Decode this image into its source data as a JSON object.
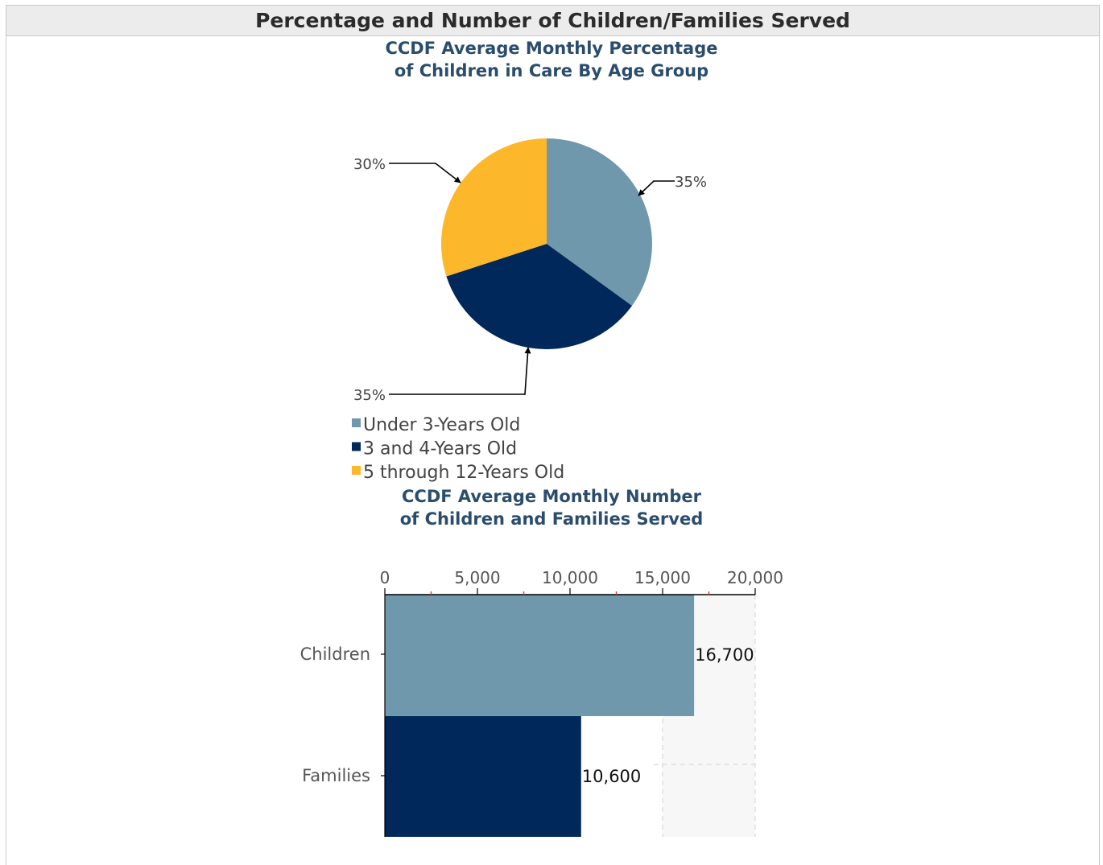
{
  "page": {
    "title": "Percentage and Number of Children/Families Served"
  },
  "chart_data": [
    {
      "type": "pie",
      "title_line1": "CCDF Average Monthly Percentage",
      "title_line2": "of Children in Care By Age Group",
      "slices": [
        {
          "name": "Under 3-Years Old",
          "value": 35,
          "label": "35%",
          "color": "#6f98ad"
        },
        {
          "name": "3 and 4-Years Old",
          "value": 35,
          "label": "35%",
          "color": "#00285a"
        },
        {
          "name": "5 through 12-Years Old",
          "value": 30,
          "label": "30%",
          "color": "#fdb72b"
        }
      ],
      "legend_position": "bottom-left"
    },
    {
      "type": "bar",
      "orientation": "horizontal",
      "title_line1": "CCDF Average Monthly Number",
      "title_line2": "of Children and Families Served",
      "categories": [
        "Children",
        "Families"
      ],
      "values": [
        16700,
        10600
      ],
      "value_labels": [
        "16,700",
        "10,600"
      ],
      "colors": [
        "#6f98ad",
        "#00285a"
      ],
      "xlim": [
        0,
        20000
      ],
      "ticks": [
        0,
        5000,
        10000,
        15000,
        20000
      ],
      "tick_labels": [
        "0",
        "5,000",
        "10,000",
        "15,000",
        "20,000"
      ],
      "axis_position": "top",
      "grid": true
    }
  ]
}
